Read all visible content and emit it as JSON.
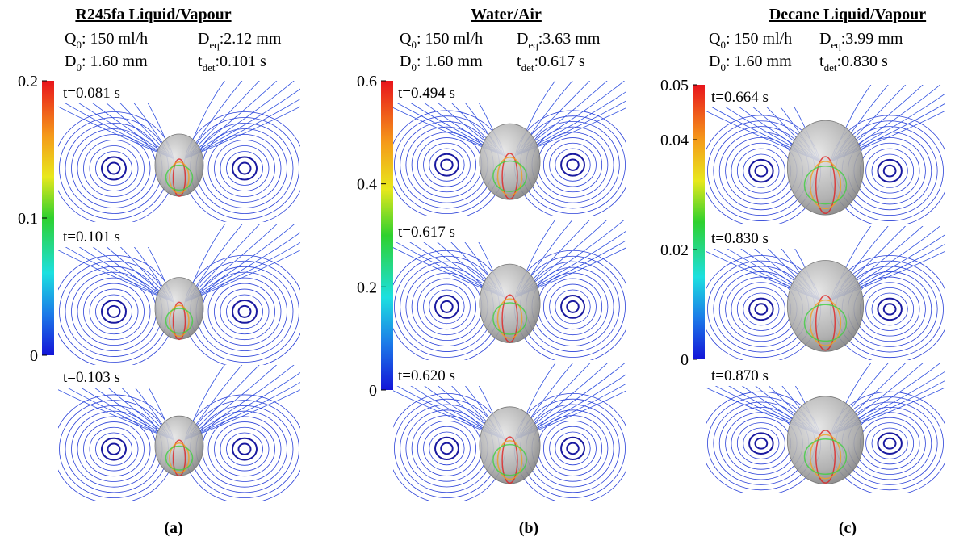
{
  "panels": [
    {
      "title": "R245fa Liquid/Vapour",
      "params": [
        {
          "symbol": "Q",
          "sub": "0",
          "text": ": 150 ml/h"
        },
        {
          "symbol": "D",
          "sub": "eq",
          "text": ":2.12 mm"
        },
        {
          "symbol": "D",
          "sub": "0",
          "text": ": 1.60 mm"
        },
        {
          "symbol": "t",
          "sub": "det",
          "text": ":0.101 s"
        }
      ],
      "colorbar_ticks": [
        0,
        0.1,
        0.2
      ],
      "snapshots": [
        "t=0.081 s",
        "t=0.101 s",
        "t=0.103 s"
      ],
      "caption": "(a)"
    },
    {
      "title": "Water/Air",
      "params": [
        {
          "symbol": "Q",
          "sub": "0",
          "text": ": 150 ml/h"
        },
        {
          "symbol": "D",
          "sub": "eq",
          "text": ":3.63 mm"
        },
        {
          "symbol": "D",
          "sub": "0",
          "text": ": 1.60 mm"
        },
        {
          "symbol": "t",
          "sub": "det",
          "text": ":0.617 s"
        }
      ],
      "colorbar_ticks": [
        0,
        0.2,
        0.4,
        0.6
      ],
      "snapshots": [
        "t=0.494 s",
        "t=0.617 s",
        "t=0.620 s"
      ],
      "caption": "(b)"
    },
    {
      "title": "Decane Liquid/Vapour",
      "params": [
        {
          "symbol": "Q",
          "sub": "0",
          "text": ": 150 ml/h"
        },
        {
          "symbol": "D",
          "sub": "eq",
          "text": ":3.99 mm"
        },
        {
          "symbol": "D",
          "sub": "0",
          "text": ": 1.60 mm"
        },
        {
          "symbol": "t",
          "sub": "det",
          "text": ":0.830 s"
        }
      ],
      "colorbar_ticks": [
        0,
        0.02,
        0.04,
        0.05
      ],
      "snapshots": [
        "t=0.664 s",
        "t=0.830 s",
        "t=0.870 s"
      ],
      "caption": "(c)"
    }
  ]
}
